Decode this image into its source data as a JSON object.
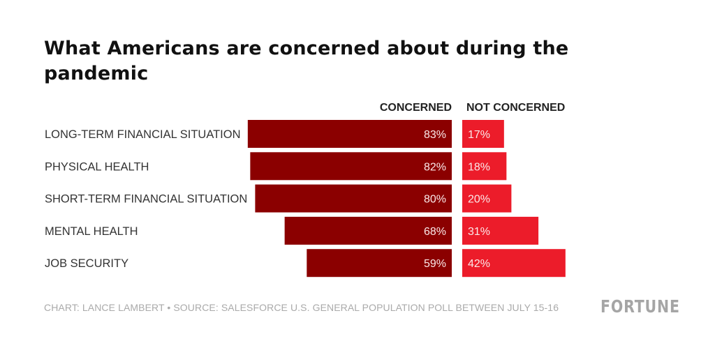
{
  "title": "What Americans are concerned about during the pandemic",
  "footer": "CHART: LANCE LAMBERT • SOURCE: SALESFORCE U.S. GENERAL POPULATION POLL BETWEEN JULY 15-16",
  "logo": "FORTUNE",
  "colors": {
    "concerned": "#8b0000",
    "not_concerned": "#ec1c2a"
  },
  "chart_data": {
    "type": "bar",
    "orientation": "horizontal-diverging",
    "title": "What Americans are concerned about during the pandemic",
    "categories": [
      "LONG-TERM FINANCIAL SITUATION",
      "PHYSICAL HEALTH",
      "SHORT-TERM FINANCIAL SITUATION",
      "MENTAL HEALTH",
      "JOB SECURITY"
    ],
    "series": [
      {
        "name": "CONCERNED",
        "values": [
          83,
          82,
          80,
          68,
          59
        ],
        "labels": [
          "83%",
          "82%",
          "80%",
          "68%",
          "59%"
        ]
      },
      {
        "name": "NOT CONCERNED",
        "values": [
          17,
          18,
          20,
          31,
          42
        ],
        "labels": [
          "17%",
          "18%",
          "20%",
          "31%",
          "42%"
        ]
      }
    ],
    "unit": "%",
    "xlim": [
      0,
      100
    ],
    "grid": false,
    "legend": "top (column headers)"
  }
}
